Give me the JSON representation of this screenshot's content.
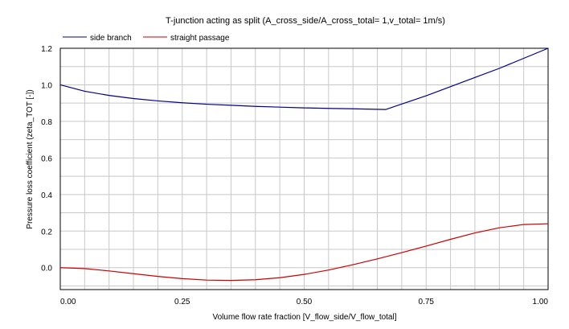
{
  "chart_data": {
    "type": "line",
    "title": "T-junction acting as split (A_cross_side/A_cross_total= 1,v_total= 1m/s)",
    "xlabel": "Volume flow rate fraction [V_flow_side/V_flow_total]",
    "ylabel": "Pressure loss coefficient (zeta_TOT [-])",
    "xlim": [
      0,
      1
    ],
    "ylim": [
      -0.12,
      1.2
    ],
    "xticks": [
      0,
      0.25,
      0.5,
      0.75,
      1.0
    ],
    "xtick_labels": [
      "0.00",
      "0.25",
      "0.50",
      "0.75",
      "1.00"
    ],
    "yticks": [
      0.0,
      0.2,
      0.4,
      0.6,
      0.8,
      1.0,
      1.2
    ],
    "ytick_labels": [
      "0.0",
      "0.2",
      "0.4",
      "0.6",
      "0.8",
      "1.0",
      "1.2"
    ],
    "grid": true,
    "legend_position": "top-left",
    "series": [
      {
        "name": "side branch",
        "color": "#00008b",
        "x": [
          0,
          0.05,
          0.1,
          0.15,
          0.2,
          0.25,
          0.3,
          0.35,
          0.4,
          0.45,
          0.5,
          0.55,
          0.6,
          0.667,
          0.7,
          0.75,
          0.8,
          0.85,
          0.9,
          0.95,
          1.0
        ],
        "y": [
          1.0,
          0.965,
          0.942,
          0.925,
          0.912,
          0.902,
          0.894,
          0.888,
          0.882,
          0.878,
          0.874,
          0.871,
          0.869,
          0.865,
          0.895,
          0.94,
          0.99,
          1.04,
          1.09,
          1.145,
          1.2
        ]
      },
      {
        "name": "straight passage",
        "color": "#cc0000",
        "x": [
          0,
          0.05,
          0.1,
          0.15,
          0.2,
          0.25,
          0.3,
          0.35,
          0.4,
          0.45,
          0.5,
          0.55,
          0.6,
          0.65,
          0.7,
          0.75,
          0.8,
          0.85,
          0.9,
          0.95,
          1.0
        ],
        "y": [
          0.0,
          -0.005,
          -0.018,
          -0.033,
          -0.048,
          -0.06,
          -0.068,
          -0.07,
          -0.066,
          -0.055,
          -0.037,
          -0.013,
          0.016,
          0.048,
          0.082,
          0.118,
          0.155,
          0.19,
          0.218,
          0.236,
          0.24
        ]
      }
    ]
  }
}
